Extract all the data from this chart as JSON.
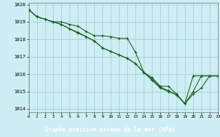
{
  "title": "Graphe pression niveau de la mer (hPa)",
  "bg_color": "#cdeef4",
  "grid_color": "#a8cdd4",
  "line_color": "#1a5c1a",
  "label_bg": "#3a7a4a",
  "xlim": [
    0,
    23
  ],
  "ylim": [
    1013.8,
    1020.1
  ],
  "yticks": [
    1014,
    1015,
    1016,
    1017,
    1018,
    1019,
    1020
  ],
  "xticks": [
    0,
    1,
    2,
    3,
    4,
    5,
    6,
    7,
    8,
    9,
    10,
    11,
    12,
    13,
    14,
    15,
    16,
    17,
    18,
    19,
    20,
    21,
    22,
    23
  ],
  "series": [
    [
      1019.7,
      1019.3,
      1019.15,
      1019.0,
      1019.0,
      1018.85,
      1018.75,
      1018.45,
      1018.2,
      1018.2,
      1018.15,
      1018.05,
      1018.05,
      1017.25,
      1016.1,
      1015.8,
      1015.3,
      1015.3,
      1014.85,
      1014.3,
      1015.9,
      1015.9,
      1015.9,
      1015.9
    ],
    [
      1019.7,
      1019.3,
      1019.15,
      1019.0,
      1018.85,
      1018.6,
      1018.4,
      1018.15,
      1017.9,
      1017.5,
      1017.3,
      1017.1,
      1016.9,
      1016.6,
      1016.1,
      1015.7,
      1015.25,
      1015.05,
      1014.8,
      1014.3,
      1015.0,
      1015.9,
      1015.9,
      1015.9
    ],
    [
      1019.7,
      1019.3,
      1019.15,
      1019.0,
      1018.85,
      1018.6,
      1018.35,
      1018.15,
      1017.9,
      1017.5,
      1017.3,
      1017.1,
      1016.9,
      1016.6,
      1016.1,
      1015.65,
      1015.2,
      1015.0,
      1014.8,
      1014.3,
      1014.85,
      1015.2,
      1015.9,
      1015.9
    ]
  ],
  "markers": [
    {
      "x": [
        0,
        1,
        2,
        3,
        4,
        5,
        6,
        7,
        8,
        9,
        10,
        11,
        12,
        13,
        14,
        15,
        16,
        17,
        18,
        19,
        20,
        21,
        22,
        23
      ],
      "y": [
        1019.7,
        1019.3,
        1019.15,
        1019.0,
        1019.0,
        1018.85,
        1018.75,
        1018.45,
        1018.2,
        1018.2,
        1018.15,
        1018.05,
        1018.05,
        1017.25,
        1016.1,
        1015.8,
        1015.3,
        1015.3,
        1014.85,
        1014.3,
        1015.9,
        1015.9,
        1015.9,
        1015.9
      ]
    },
    {
      "x": [
        0,
        1,
        2,
        3,
        4,
        5,
        6,
        7,
        8,
        9,
        10,
        11,
        12,
        13,
        14,
        15,
        16,
        17,
        18,
        19,
        20,
        21,
        22,
        23
      ],
      "y": [
        1019.7,
        1019.3,
        1019.15,
        1019.0,
        1018.85,
        1018.6,
        1018.4,
        1018.15,
        1017.9,
        1017.5,
        1017.3,
        1017.1,
        1016.9,
        1016.6,
        1016.1,
        1015.7,
        1015.25,
        1015.05,
        1014.8,
        1014.3,
        1015.0,
        1015.9,
        1015.9,
        1015.9
      ]
    },
    {
      "x": [
        0,
        1,
        2,
        3,
        4,
        5,
        6,
        7,
        8,
        9,
        10,
        11,
        12,
        13,
        14,
        15,
        16,
        17,
        18,
        19,
        20,
        21,
        22,
        23
      ],
      "y": [
        1019.7,
        1019.3,
        1019.15,
        1019.0,
        1018.85,
        1018.6,
        1018.35,
        1018.15,
        1017.9,
        1017.5,
        1017.3,
        1017.1,
        1016.9,
        1016.6,
        1016.1,
        1015.65,
        1015.2,
        1015.0,
        1014.8,
        1014.3,
        1014.85,
        1015.2,
        1015.9,
        1015.9
      ]
    }
  ]
}
